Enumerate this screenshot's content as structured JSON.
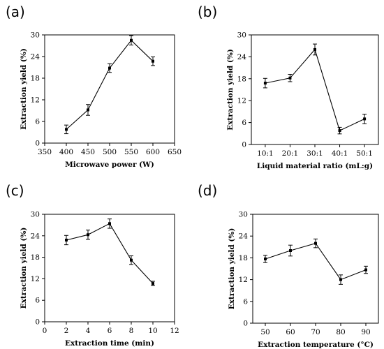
{
  "chart_data": [
    {
      "panel": "(a)",
      "type": "line",
      "xlabel": "Microwave power (W)",
      "ylabel": "Extraction yield (%)",
      "x": [
        400,
        450,
        500,
        550,
        600
      ],
      "y": [
        3.8,
        9.2,
        20.8,
        28.5,
        22.7
      ],
      "err": [
        1.2,
        1.5,
        1.2,
        1.3,
        1.2
      ],
      "xlim": [
        350,
        650
      ],
      "ylim": [
        0,
        30
      ],
      "xticks": [
        350,
        400,
        450,
        500,
        550,
        600,
        650
      ],
      "yticks": [
        0,
        6,
        12,
        18,
        24,
        30
      ],
      "xtick_labels": [
        "350",
        "400",
        "450",
        "500",
        "550",
        "600",
        "650"
      ],
      "ytick_labels": [
        "0",
        "6",
        "12",
        "18",
        "24",
        "30"
      ],
      "grid": false,
      "markers": "square",
      "error_bars": true
    },
    {
      "panel": "(b)",
      "type": "line",
      "xlabel": "Liquid material ratio (mL:g)",
      "ylabel": "Extraction yield (%)",
      "categories": [
        "10:1",
        "20:1",
        "30:1",
        "40:1",
        "50:1"
      ],
      "y": [
        16.8,
        18.2,
        26.0,
        3.8,
        7.0
      ],
      "err": [
        1.3,
        1.0,
        1.5,
        0.9,
        1.3
      ],
      "ylim": [
        0,
        30
      ],
      "yticks": [
        0,
        6,
        12,
        18,
        24,
        30
      ],
      "ytick_labels": [
        "0",
        "6",
        "12",
        "18",
        "24",
        "30"
      ],
      "grid": false,
      "markers": "square",
      "error_bars": true
    },
    {
      "panel": "(c)",
      "type": "line",
      "xlabel": "Extraction time (min)",
      "ylabel": "Extraction yield (%)",
      "x": [
        2,
        4,
        6,
        8,
        10
      ],
      "y": [
        22.8,
        24.3,
        27.4,
        17.2,
        10.7
      ],
      "err": [
        1.3,
        1.3,
        1.3,
        1.2,
        0.6
      ],
      "xlim": [
        0,
        12
      ],
      "ylim": [
        0,
        30
      ],
      "xticks": [
        0,
        2,
        4,
        6,
        8,
        10,
        12
      ],
      "yticks": [
        0,
        6,
        12,
        18,
        24,
        30
      ],
      "xtick_labels": [
        "0",
        "2",
        "4",
        "6",
        "8",
        "10",
        "12"
      ],
      "ytick_labels": [
        "0",
        "6",
        "12",
        "18",
        "24",
        "30"
      ],
      "grid": false,
      "markers": "square",
      "error_bars": true
    },
    {
      "panel": "(d)",
      "type": "line",
      "xlabel": "Extraction temperature (°C)",
      "ylabel": "Extraction yield (%)",
      "x": [
        50,
        60,
        70,
        80,
        90
      ],
      "y": [
        17.7,
        20.0,
        22.0,
        12.0,
        14.7
      ],
      "err": [
        1.0,
        1.5,
        1.2,
        1.3,
        1.0
      ],
      "xlim": [
        45,
        95
      ],
      "ylim": [
        0,
        30
      ],
      "xticks": [
        50,
        60,
        70,
        80,
        90
      ],
      "yticks": [
        0,
        6,
        12,
        18,
        24,
        30
      ],
      "xtick_labels": [
        "50",
        "60",
        "70",
        "80",
        "90"
      ],
      "ytick_labels": [
        "0",
        "6",
        "12",
        "18",
        "24",
        "30"
      ],
      "grid": false,
      "markers": "square",
      "error_bars": true
    }
  ]
}
